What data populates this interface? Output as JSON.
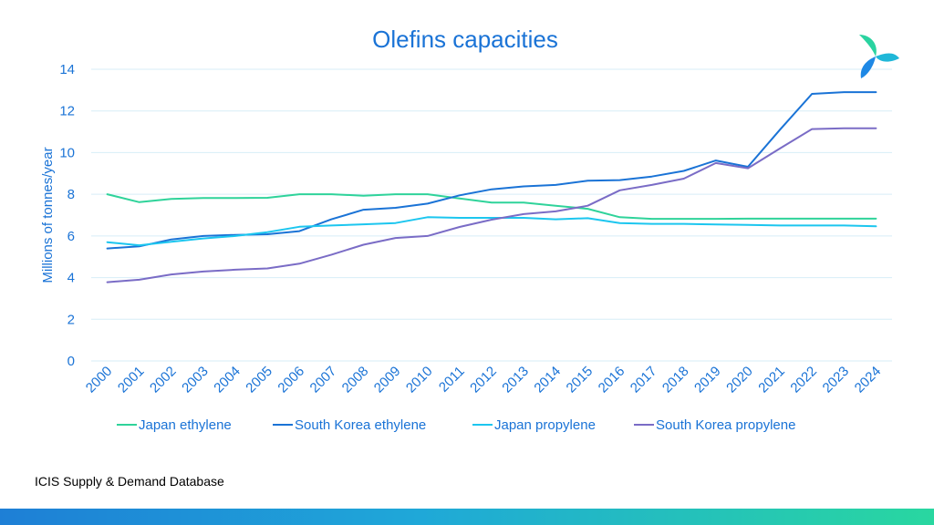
{
  "colors": {
    "title": "#1a73d6",
    "axis_text": "#1a73d6",
    "grid": "#d7eef7",
    "logo_green": "#2ad3a0",
    "logo_blue": "#1e88e5"
  },
  "source": "ICIS Supply & Demand Database",
  "logo": {
    "icon": "icis-petal-logo-icon"
  },
  "chart_data": {
    "type": "line",
    "title": "Olefins capacities",
    "xlabel": "",
    "ylabel": "Millions of tonnes/year",
    "ylim": [
      0,
      14
    ],
    "yticks": [
      0,
      2,
      4,
      6,
      8,
      10,
      12,
      14
    ],
    "grid": true,
    "legend_position": "bottom",
    "categories": [
      "2000",
      "2001",
      "2002",
      "2003",
      "2004",
      "2005",
      "2006",
      "2007",
      "2008",
      "2009",
      "2010",
      "2011",
      "2012",
      "2013",
      "2014",
      "2015",
      "2016",
      "2017",
      "2018",
      "2019",
      "2020",
      "2021",
      "2022",
      "2023",
      "2024"
    ],
    "series": [
      {
        "name": "Japan ethylene",
        "color": "#2fd39a",
        "values": [
          8.0,
          7.62,
          7.78,
          7.82,
          7.82,
          7.83,
          8.0,
          8.0,
          7.93,
          8.0,
          8.0,
          7.8,
          7.6,
          7.6,
          7.45,
          7.3,
          6.9,
          6.82,
          6.82,
          6.82,
          6.83,
          6.83,
          6.83,
          6.83,
          6.83
        ]
      },
      {
        "name": "South Korea ethylene",
        "color": "#1a73d6",
        "values": [
          5.4,
          5.5,
          5.83,
          6.0,
          6.05,
          6.08,
          6.23,
          6.8,
          7.26,
          7.35,
          7.55,
          7.95,
          8.24,
          8.38,
          8.45,
          8.65,
          8.68,
          8.85,
          9.12,
          9.62,
          9.32,
          11.1,
          12.82,
          12.9,
          12.9
        ]
      },
      {
        "name": "Japan propylene",
        "color": "#1cc6ef",
        "values": [
          5.7,
          5.55,
          5.72,
          5.88,
          6.0,
          6.18,
          6.44,
          6.5,
          6.56,
          6.62,
          6.9,
          6.87,
          6.87,
          6.87,
          6.8,
          6.85,
          6.62,
          6.58,
          6.58,
          6.55,
          6.53,
          6.5,
          6.5,
          6.5,
          6.46
        ]
      },
      {
        "name": "South Korea propylene",
        "color": "#7a6cc6",
        "values": [
          3.78,
          3.9,
          4.15,
          4.29,
          4.38,
          4.44,
          4.67,
          5.1,
          5.58,
          5.9,
          6.0,
          6.43,
          6.78,
          7.05,
          7.18,
          7.45,
          8.19,
          8.45,
          8.75,
          9.5,
          9.25,
          10.2,
          11.13,
          11.17,
          11.17
        ]
      }
    ]
  }
}
